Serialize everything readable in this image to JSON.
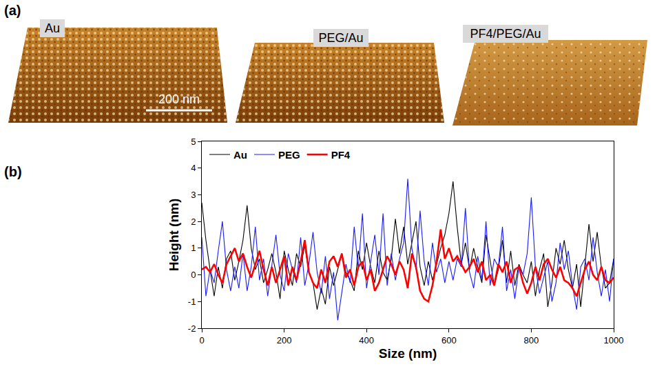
{
  "figure_a": {
    "panel_label": "(a)",
    "images": [
      {
        "label": "Au"
      },
      {
        "label": "PEG/Au"
      },
      {
        "label": "PF4/PEG/Au"
      }
    ],
    "scale_bar": "200 nm"
  },
  "chart_data": {
    "type": "line",
    "panel_label": "(b)",
    "x_label": "Size (nm)",
    "y_label": "Height (nm)",
    "x": [
      0,
      10,
      20,
      30,
      40,
      50,
      60,
      70,
      80,
      90,
      100,
      110,
      120,
      130,
      140,
      150,
      160,
      170,
      180,
      190,
      200,
      210,
      220,
      230,
      240,
      250,
      260,
      270,
      280,
      290,
      300,
      310,
      320,
      330,
      340,
      350,
      360,
      370,
      380,
      390,
      400,
      410,
      420,
      430,
      440,
      450,
      460,
      470,
      480,
      490,
      500,
      510,
      520,
      530,
      540,
      550,
      560,
      570,
      580,
      590,
      600,
      610,
      620,
      630,
      640,
      650,
      660,
      670,
      680,
      690,
      700,
      710,
      720,
      730,
      740,
      750,
      760,
      770,
      780,
      790,
      800,
      810,
      820,
      830,
      840,
      850,
      860,
      870,
      880,
      890,
      900,
      910,
      920,
      930,
      940,
      950,
      960,
      970,
      980,
      990,
      1000
    ],
    "series": [
      {
        "name": "Au",
        "color": "#000000",
        "values": [
          2.7,
          1.3,
          0.2,
          -0.8,
          0.3,
          -0.5,
          0.6,
          0.9,
          -0.2,
          0.5,
          1.3,
          2.6,
          1.0,
          0.2,
          0.6,
          -0.3,
          0.2,
          0.8,
          0.1,
          -0.9,
          0.9,
          0.2,
          -0.4,
          0.8,
          0.3,
          1.1,
          0.1,
          -0.3,
          -1.3,
          -0.5,
          -1.1,
          0.3,
          -0.4,
          0.2,
          0.8,
          0.1,
          -0.2,
          -0.6,
          0.9,
          0.2,
          1.2,
          0.3,
          -0.3,
          0.9,
          0.1,
          -0.2,
          0.6,
          2.1,
          0.8,
          1.8,
          0.4,
          1.2,
          2.0,
          0.3,
          -0.4,
          0.5,
          -0.2,
          0.4,
          1.0,
          1.5,
          2.3,
          3.5,
          1.8,
          0.4,
          1.2,
          0.2,
          1.0,
          0.3,
          -0.3,
          1.5,
          0.5,
          -0.4,
          0.2,
          1.3,
          -0.3,
          0.9,
          -0.4,
          0.4,
          0.0,
          -0.3,
          0.5,
          -0.8,
          0.2,
          0.8,
          -1.2,
          -0.3,
          1.0,
          0.4,
          1.3,
          0.2,
          -0.5,
          0.4,
          -1.2,
          0.3,
          1.9,
          0.5,
          1.6,
          0.3,
          -0.5,
          -0.3,
          0.6
        ]
      },
      {
        "name": "PEG",
        "color": "#1a1aff",
        "values": [
          1.4,
          -0.8,
          0.2,
          -0.3,
          0.9,
          2.0,
          0.2,
          -0.6,
          0.3,
          -0.5,
          0.8,
          -0.6,
          0.3,
          1.8,
          -0.2,
          0.6,
          -0.8,
          0.3,
          1.5,
          0.0,
          -0.6,
          0.8,
          0.2,
          -0.3,
          1.4,
          -0.4,
          0.4,
          1.6,
          0.1,
          -0.7,
          0.7,
          -0.9,
          0.1,
          -1.7,
          -0.6,
          0.4,
          -0.3,
          1.8,
          0.2,
          2.3,
          -0.5,
          0.5,
          1.5,
          0.0,
          2.3,
          -0.4,
          0.8,
          -0.2,
          0.6,
          1.2,
          3.6,
          1.0,
          0.2,
          2.4,
          0.5,
          -0.4,
          1.2,
          0.1,
          0.6,
          -0.3,
          0.5,
          -0.2,
          0.6,
          0.3,
          2.5,
          0.1,
          -0.5,
          0.7,
          -0.2,
          2.0,
          -0.4,
          0.6,
          0.3,
          1.8,
          -0.6,
          0.2,
          -0.9,
          0.3,
          0.0,
          0.8,
          2.9,
          0.3,
          -0.7,
          -0.1,
          0.5,
          -1.0,
          -0.3,
          1.2,
          0.2,
          0.9,
          -0.4,
          -1.3,
          0.3,
          0.6,
          -0.2,
          1.4,
          0.1,
          -0.8,
          0.2,
          -1.0,
          0.6
        ]
      },
      {
        "name": "PF4",
        "color": "#ff0000",
        "values": [
          0.2,
          0.3,
          0.1,
          0.4,
          0.0,
          -0.3,
          0.4,
          0.7,
          1.0,
          0.5,
          0.8,
          0.3,
          -0.1,
          0.4,
          0.9,
          0.2,
          -0.4,
          0.3,
          -0.3,
          0.2,
          0.7,
          -0.4,
          0.3,
          -0.2,
          0.5,
          1.3,
          0.1,
          -0.3,
          -0.5,
          0.2,
          -0.3,
          0.5,
          0.7,
          0.3,
          0.8,
          -0.1,
          0.2,
          -0.4,
          0.3,
          0.5,
          -0.2,
          0.2,
          -0.6,
          -0.3,
          0.2,
          0.7,
          0.4,
          0.0,
          0.5,
          0.2,
          -0.5,
          0.8,
          0.3,
          -0.6,
          -0.9,
          -1.0,
          -0.4,
          0.5,
          1.7,
          0.6,
          1.0,
          0.5,
          0.7,
          0.4,
          0.1,
          0.3,
          0.6,
          0.1,
          0.5,
          -0.2,
          0.0,
          -0.4,
          0.4,
          0.1,
          0.5,
          -0.3,
          0.2,
          0.3,
          -0.3,
          -0.7,
          -0.3,
          0.3,
          -0.2,
          0.4,
          0.6,
          0.2,
          -0.1,
          0.3,
          -0.2,
          -0.3,
          -0.5,
          -0.8,
          -0.3,
          0.2,
          0.5,
          0.0,
          -0.2,
          0.3,
          -0.2,
          -0.3,
          -0.1
        ]
      }
    ],
    "xlim": [
      0,
      1000
    ],
    "xticks": [
      0,
      200,
      400,
      600,
      800,
      1000
    ],
    "ylim": [
      -2,
      5
    ],
    "yticks": [
      -2,
      -1,
      0,
      1,
      2,
      3,
      4,
      5
    ],
    "grid": false,
    "legend": "top-left"
  }
}
